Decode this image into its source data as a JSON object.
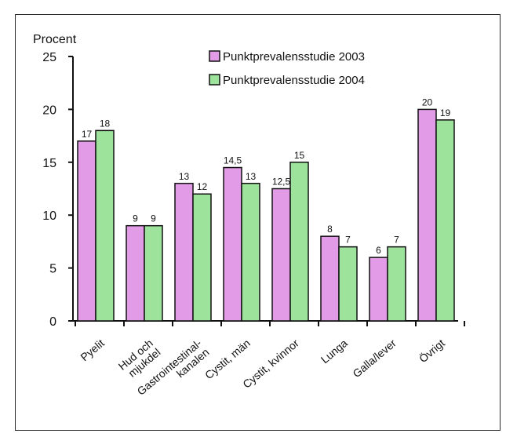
{
  "chart_data": {
    "type": "bar",
    "ylabel": "Procent",
    "ylim": [
      0,
      25
    ],
    "yticks": [
      0,
      5,
      10,
      15,
      20,
      25
    ],
    "categories": [
      [
        "Pyelit"
      ],
      [
        "Hud och",
        "mjukdel"
      ],
      [
        "Gastrointestinal-",
        "kanalen"
      ],
      [
        "Cystit, män"
      ],
      [
        "Cystit, kvinnor"
      ],
      [
        "Lunga"
      ],
      [
        "Galla/lever"
      ],
      [
        "Övrigt"
      ]
    ],
    "series": [
      {
        "name": "Punktprevalensstudie 2003",
        "color": "#e29be6",
        "values": [
          17,
          9,
          13,
          14.5,
          12.5,
          8,
          6,
          20
        ],
        "labels": [
          "17",
          "9",
          "13",
          "14,5",
          "12,5",
          "8",
          "6",
          "20"
        ]
      },
      {
        "name": "Punktprevalensstudie 2004",
        "color": "#9ee39c",
        "values": [
          18,
          9,
          12,
          13,
          15,
          7,
          7,
          19
        ],
        "labels": [
          "18",
          "9",
          "12",
          "13",
          "15",
          "7",
          "7",
          "19"
        ]
      }
    ],
    "legend": "top-right",
    "grid": false
  }
}
